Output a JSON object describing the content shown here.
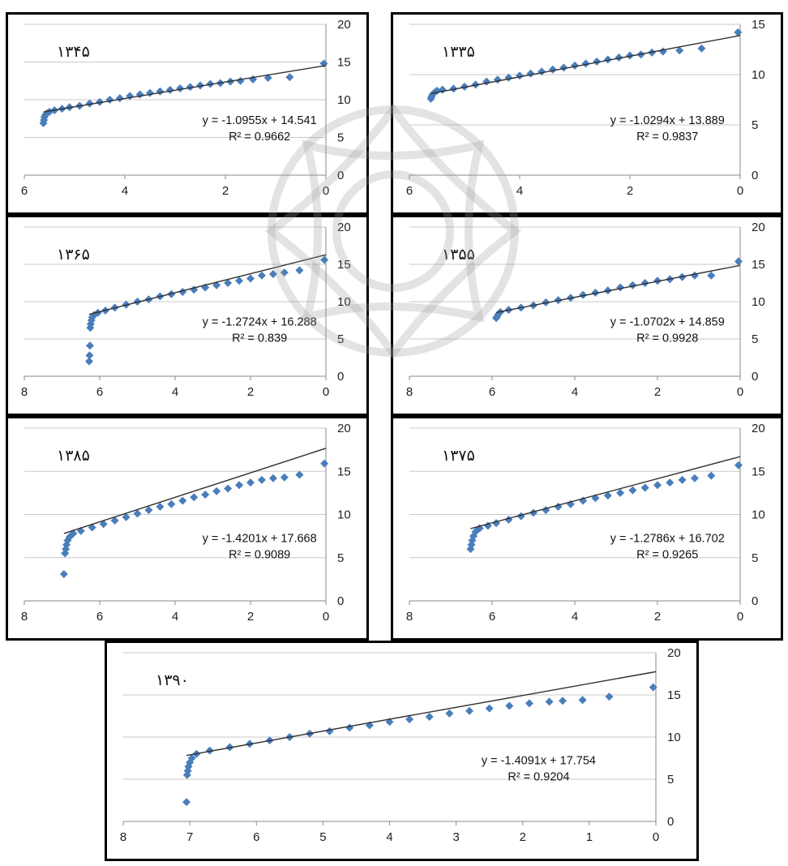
{
  "colors": {
    "points": "#4a7ebb",
    "trend": "#303030",
    "grid": "#c8c8c8",
    "frame": "#000000"
  },
  "chart_data": [
    {
      "type": "scatter",
      "title": "۱۳۴۵",
      "xlim": [
        6,
        0
      ],
      "ylim": [
        0,
        20
      ],
      "xticks": [
        6,
        4,
        2,
        0
      ],
      "yticks": [
        0,
        5,
        10,
        15,
        20
      ],
      "equation": "y = -1.0955x + 14.541",
      "r2_label": "R² = 0.9662",
      "slope": -1.0955,
      "intercept": 14.541,
      "points": [
        [
          0.04,
          14.8
        ],
        [
          0.72,
          13.0
        ],
        [
          1.15,
          12.9
        ],
        [
          1.45,
          12.7
        ],
        [
          1.7,
          12.5
        ],
        [
          1.9,
          12.4
        ],
        [
          2.1,
          12.2
        ],
        [
          2.3,
          12.1
        ],
        [
          2.5,
          11.9
        ],
        [
          2.7,
          11.7
        ],
        [
          2.9,
          11.5
        ],
        [
          3.1,
          11.3
        ],
        [
          3.3,
          11.1
        ],
        [
          3.5,
          10.9
        ],
        [
          3.7,
          10.7
        ],
        [
          3.9,
          10.5
        ],
        [
          4.1,
          10.2
        ],
        [
          4.3,
          10.0
        ],
        [
          4.5,
          9.7
        ],
        [
          4.7,
          9.5
        ],
        [
          4.9,
          9.2
        ],
        [
          5.1,
          9.0
        ],
        [
          5.25,
          8.8
        ],
        [
          5.4,
          8.6
        ],
        [
          5.5,
          8.4
        ],
        [
          5.55,
          8.2
        ],
        [
          5.58,
          8.0
        ],
        [
          5.6,
          7.7
        ],
        [
          5.61,
          7.3
        ],
        [
          5.62,
          6.9
        ]
      ]
    },
    {
      "type": "scatter",
      "title": "۱۳۳۵",
      "xlim": [
        6,
        0
      ],
      "ylim": [
        0,
        15
      ],
      "xticks": [
        6,
        4,
        2,
        0
      ],
      "yticks": [
        0,
        5,
        10,
        15
      ],
      "equation": "y = -1.0294x + 13.889",
      "r2_label": "R² = 0.9837",
      "slope": -1.0294,
      "intercept": 13.889,
      "points": [
        [
          0.04,
          14.2
        ],
        [
          0.7,
          12.6
        ],
        [
          1.1,
          12.4
        ],
        [
          1.4,
          12.3
        ],
        [
          1.6,
          12.2
        ],
        [
          1.8,
          12.0
        ],
        [
          2.0,
          11.9
        ],
        [
          2.2,
          11.7
        ],
        [
          2.4,
          11.5
        ],
        [
          2.6,
          11.3
        ],
        [
          2.8,
          11.1
        ],
        [
          3.0,
          10.9
        ],
        [
          3.2,
          10.7
        ],
        [
          3.4,
          10.5
        ],
        [
          3.6,
          10.3
        ],
        [
          3.8,
          10.1
        ],
        [
          4.0,
          9.9
        ],
        [
          4.2,
          9.7
        ],
        [
          4.4,
          9.5
        ],
        [
          4.6,
          9.3
        ],
        [
          4.8,
          9.0
        ],
        [
          5.0,
          8.8
        ],
        [
          5.2,
          8.6
        ],
        [
          5.4,
          8.5
        ],
        [
          5.5,
          8.4
        ],
        [
          5.55,
          8.2
        ],
        [
          5.58,
          8.0
        ],
        [
          5.6,
          7.8
        ],
        [
          5.61,
          7.6
        ]
      ]
    },
    {
      "type": "scatter",
      "title": "۱۳۶۵",
      "xlim": [
        8,
        0
      ],
      "ylim": [
        0,
        20
      ],
      "xticks": [
        8,
        6,
        4,
        2,
        0
      ],
      "yticks": [
        0,
        5,
        10,
        15,
        20
      ],
      "equation": "y = -1.2724x + 16.288",
      "r2_label": "R² = 0.839",
      "slope": -1.2724,
      "intercept": 16.288,
      "points": [
        [
          0.04,
          15.6
        ],
        [
          0.7,
          14.2
        ],
        [
          1.1,
          13.9
        ],
        [
          1.4,
          13.7
        ],
        [
          1.7,
          13.5
        ],
        [
          2.0,
          13.1
        ],
        [
          2.3,
          12.8
        ],
        [
          2.6,
          12.5
        ],
        [
          2.9,
          12.2
        ],
        [
          3.2,
          11.9
        ],
        [
          3.5,
          11.6
        ],
        [
          3.8,
          11.3
        ],
        [
          4.1,
          11.0
        ],
        [
          4.4,
          10.7
        ],
        [
          4.7,
          10.3
        ],
        [
          5.0,
          10.0
        ],
        [
          5.3,
          9.6
        ],
        [
          5.6,
          9.2
        ],
        [
          5.85,
          8.8
        ],
        [
          6.05,
          8.5
        ],
        [
          6.15,
          8.2
        ],
        [
          6.2,
          7.9
        ],
        [
          6.22,
          7.5
        ],
        [
          6.24,
          7.0
        ],
        [
          6.25,
          6.5
        ],
        [
          6.26,
          4.1
        ],
        [
          6.27,
          2.8
        ],
        [
          6.28,
          2.0
        ]
      ]
    },
    {
      "type": "scatter",
      "title": "۱۳۵۵",
      "xlim": [
        8,
        0
      ],
      "ylim": [
        0,
        20
      ],
      "xticks": [
        8,
        6,
        4,
        2,
        0
      ],
      "yticks": [
        0,
        5,
        10,
        15,
        20
      ],
      "equation": "y = -1.0702x + 14.859",
      "r2_label": "R² = 0.9928",
      "slope": -1.0702,
      "intercept": 14.859,
      "points": [
        [
          0.04,
          15.4
        ],
        [
          0.7,
          13.5
        ],
        [
          1.1,
          13.5
        ],
        [
          1.4,
          13.3
        ],
        [
          1.7,
          13.0
        ],
        [
          2.0,
          12.8
        ],
        [
          2.3,
          12.5
        ],
        [
          2.6,
          12.2
        ],
        [
          2.9,
          11.9
        ],
        [
          3.2,
          11.5
        ],
        [
          3.5,
          11.2
        ],
        [
          3.8,
          10.9
        ],
        [
          4.1,
          10.5
        ],
        [
          4.4,
          10.2
        ],
        [
          4.7,
          9.9
        ],
        [
          5.0,
          9.5
        ],
        [
          5.3,
          9.2
        ],
        [
          5.6,
          8.9
        ],
        [
          5.8,
          8.6
        ],
        [
          5.85,
          8.3
        ],
        [
          5.88,
          8.0
        ],
        [
          5.9,
          7.8
        ]
      ]
    },
    {
      "type": "scatter",
      "title": "۱۳۸۵",
      "xlim": [
        8,
        0
      ],
      "ylim": [
        0,
        20
      ],
      "xticks": [
        8,
        6,
        4,
        2,
        0
      ],
      "yticks": [
        0,
        5,
        10,
        15,
        20
      ],
      "equation": "y = -1.4201x + 17.668",
      "r2_label": "R² = 0.9089",
      "slope": -1.4201,
      "intercept": 17.668,
      "points": [
        [
          0.04,
          15.9
        ],
        [
          0.7,
          14.6
        ],
        [
          1.1,
          14.3
        ],
        [
          1.4,
          14.2
        ],
        [
          1.7,
          14.0
        ],
        [
          2.0,
          13.7
        ],
        [
          2.3,
          13.4
        ],
        [
          2.6,
          13.0
        ],
        [
          2.9,
          12.7
        ],
        [
          3.2,
          12.3
        ],
        [
          3.5,
          12.0
        ],
        [
          3.8,
          11.6
        ],
        [
          4.1,
          11.2
        ],
        [
          4.4,
          10.9
        ],
        [
          4.7,
          10.5
        ],
        [
          5.0,
          10.1
        ],
        [
          5.3,
          9.7
        ],
        [
          5.6,
          9.3
        ],
        [
          5.9,
          8.9
        ],
        [
          6.2,
          8.5
        ],
        [
          6.5,
          8.1
        ],
        [
          6.7,
          7.8
        ],
        [
          6.8,
          7.4
        ],
        [
          6.85,
          7.0
        ],
        [
          6.88,
          6.5
        ],
        [
          6.9,
          6.0
        ],
        [
          6.92,
          5.5
        ],
        [
          6.95,
          3.1
        ]
      ]
    },
    {
      "type": "scatter",
      "title": "۱۳۷۵",
      "xlim": [
        8,
        0
      ],
      "ylim": [
        0,
        20
      ],
      "xticks": [
        8,
        6,
        4,
        2,
        0
      ],
      "yticks": [
        0,
        5,
        10,
        15,
        20
      ],
      "equation": "y = -1.2786x + 16.702",
      "r2_label": "R² = 0.9265",
      "slope": -1.2786,
      "intercept": 16.702,
      "points": [
        [
          0.04,
          15.7
        ],
        [
          0.7,
          14.5
        ],
        [
          1.1,
          14.2
        ],
        [
          1.4,
          14.0
        ],
        [
          1.7,
          13.7
        ],
        [
          2.0,
          13.4
        ],
        [
          2.3,
          13.1
        ],
        [
          2.6,
          12.8
        ],
        [
          2.9,
          12.5
        ],
        [
          3.2,
          12.2
        ],
        [
          3.5,
          11.9
        ],
        [
          3.8,
          11.6
        ],
        [
          4.1,
          11.2
        ],
        [
          4.4,
          10.9
        ],
        [
          4.7,
          10.5
        ],
        [
          5.0,
          10.2
        ],
        [
          5.3,
          9.8
        ],
        [
          5.6,
          9.4
        ],
        [
          5.9,
          9.0
        ],
        [
          6.1,
          8.7
        ],
        [
          6.3,
          8.4
        ],
        [
          6.4,
          8.0
        ],
        [
          6.45,
          7.5
        ],
        [
          6.48,
          7.0
        ],
        [
          6.5,
          6.5
        ],
        [
          6.52,
          6.0
        ]
      ]
    },
    {
      "type": "scatter",
      "title": "۱۳۹۰",
      "xlim": [
        8,
        0
      ],
      "ylim": [
        0,
        20
      ],
      "xticks": [
        8,
        7,
        6,
        5,
        4,
        3,
        2,
        1,
        0
      ],
      "yticks": [
        0,
        5,
        10,
        15,
        20
      ],
      "equation": "y = -1.4091x + 17.754",
      "r2_label": "R² = 0.9204",
      "slope": -1.4091,
      "intercept": 17.754,
      "points": [
        [
          0.04,
          15.9
        ],
        [
          0.7,
          14.8
        ],
        [
          1.1,
          14.4
        ],
        [
          1.4,
          14.3
        ],
        [
          1.6,
          14.2
        ],
        [
          1.9,
          14.0
        ],
        [
          2.2,
          13.7
        ],
        [
          2.5,
          13.4
        ],
        [
          2.8,
          13.1
        ],
        [
          3.1,
          12.8
        ],
        [
          3.4,
          12.4
        ],
        [
          3.7,
          12.1
        ],
        [
          4.0,
          11.8
        ],
        [
          4.3,
          11.4
        ],
        [
          4.6,
          11.1
        ],
        [
          4.9,
          10.7
        ],
        [
          5.2,
          10.4
        ],
        [
          5.5,
          10.0
        ],
        [
          5.8,
          9.6
        ],
        [
          6.1,
          9.2
        ],
        [
          6.4,
          8.8
        ],
        [
          6.7,
          8.4
        ],
        [
          6.9,
          8.0
        ],
        [
          6.97,
          7.5
        ],
        [
          7.0,
          7.0
        ],
        [
          7.02,
          6.5
        ],
        [
          7.03,
          6.0
        ],
        [
          7.04,
          5.5
        ],
        [
          7.05,
          2.3
        ]
      ]
    }
  ]
}
